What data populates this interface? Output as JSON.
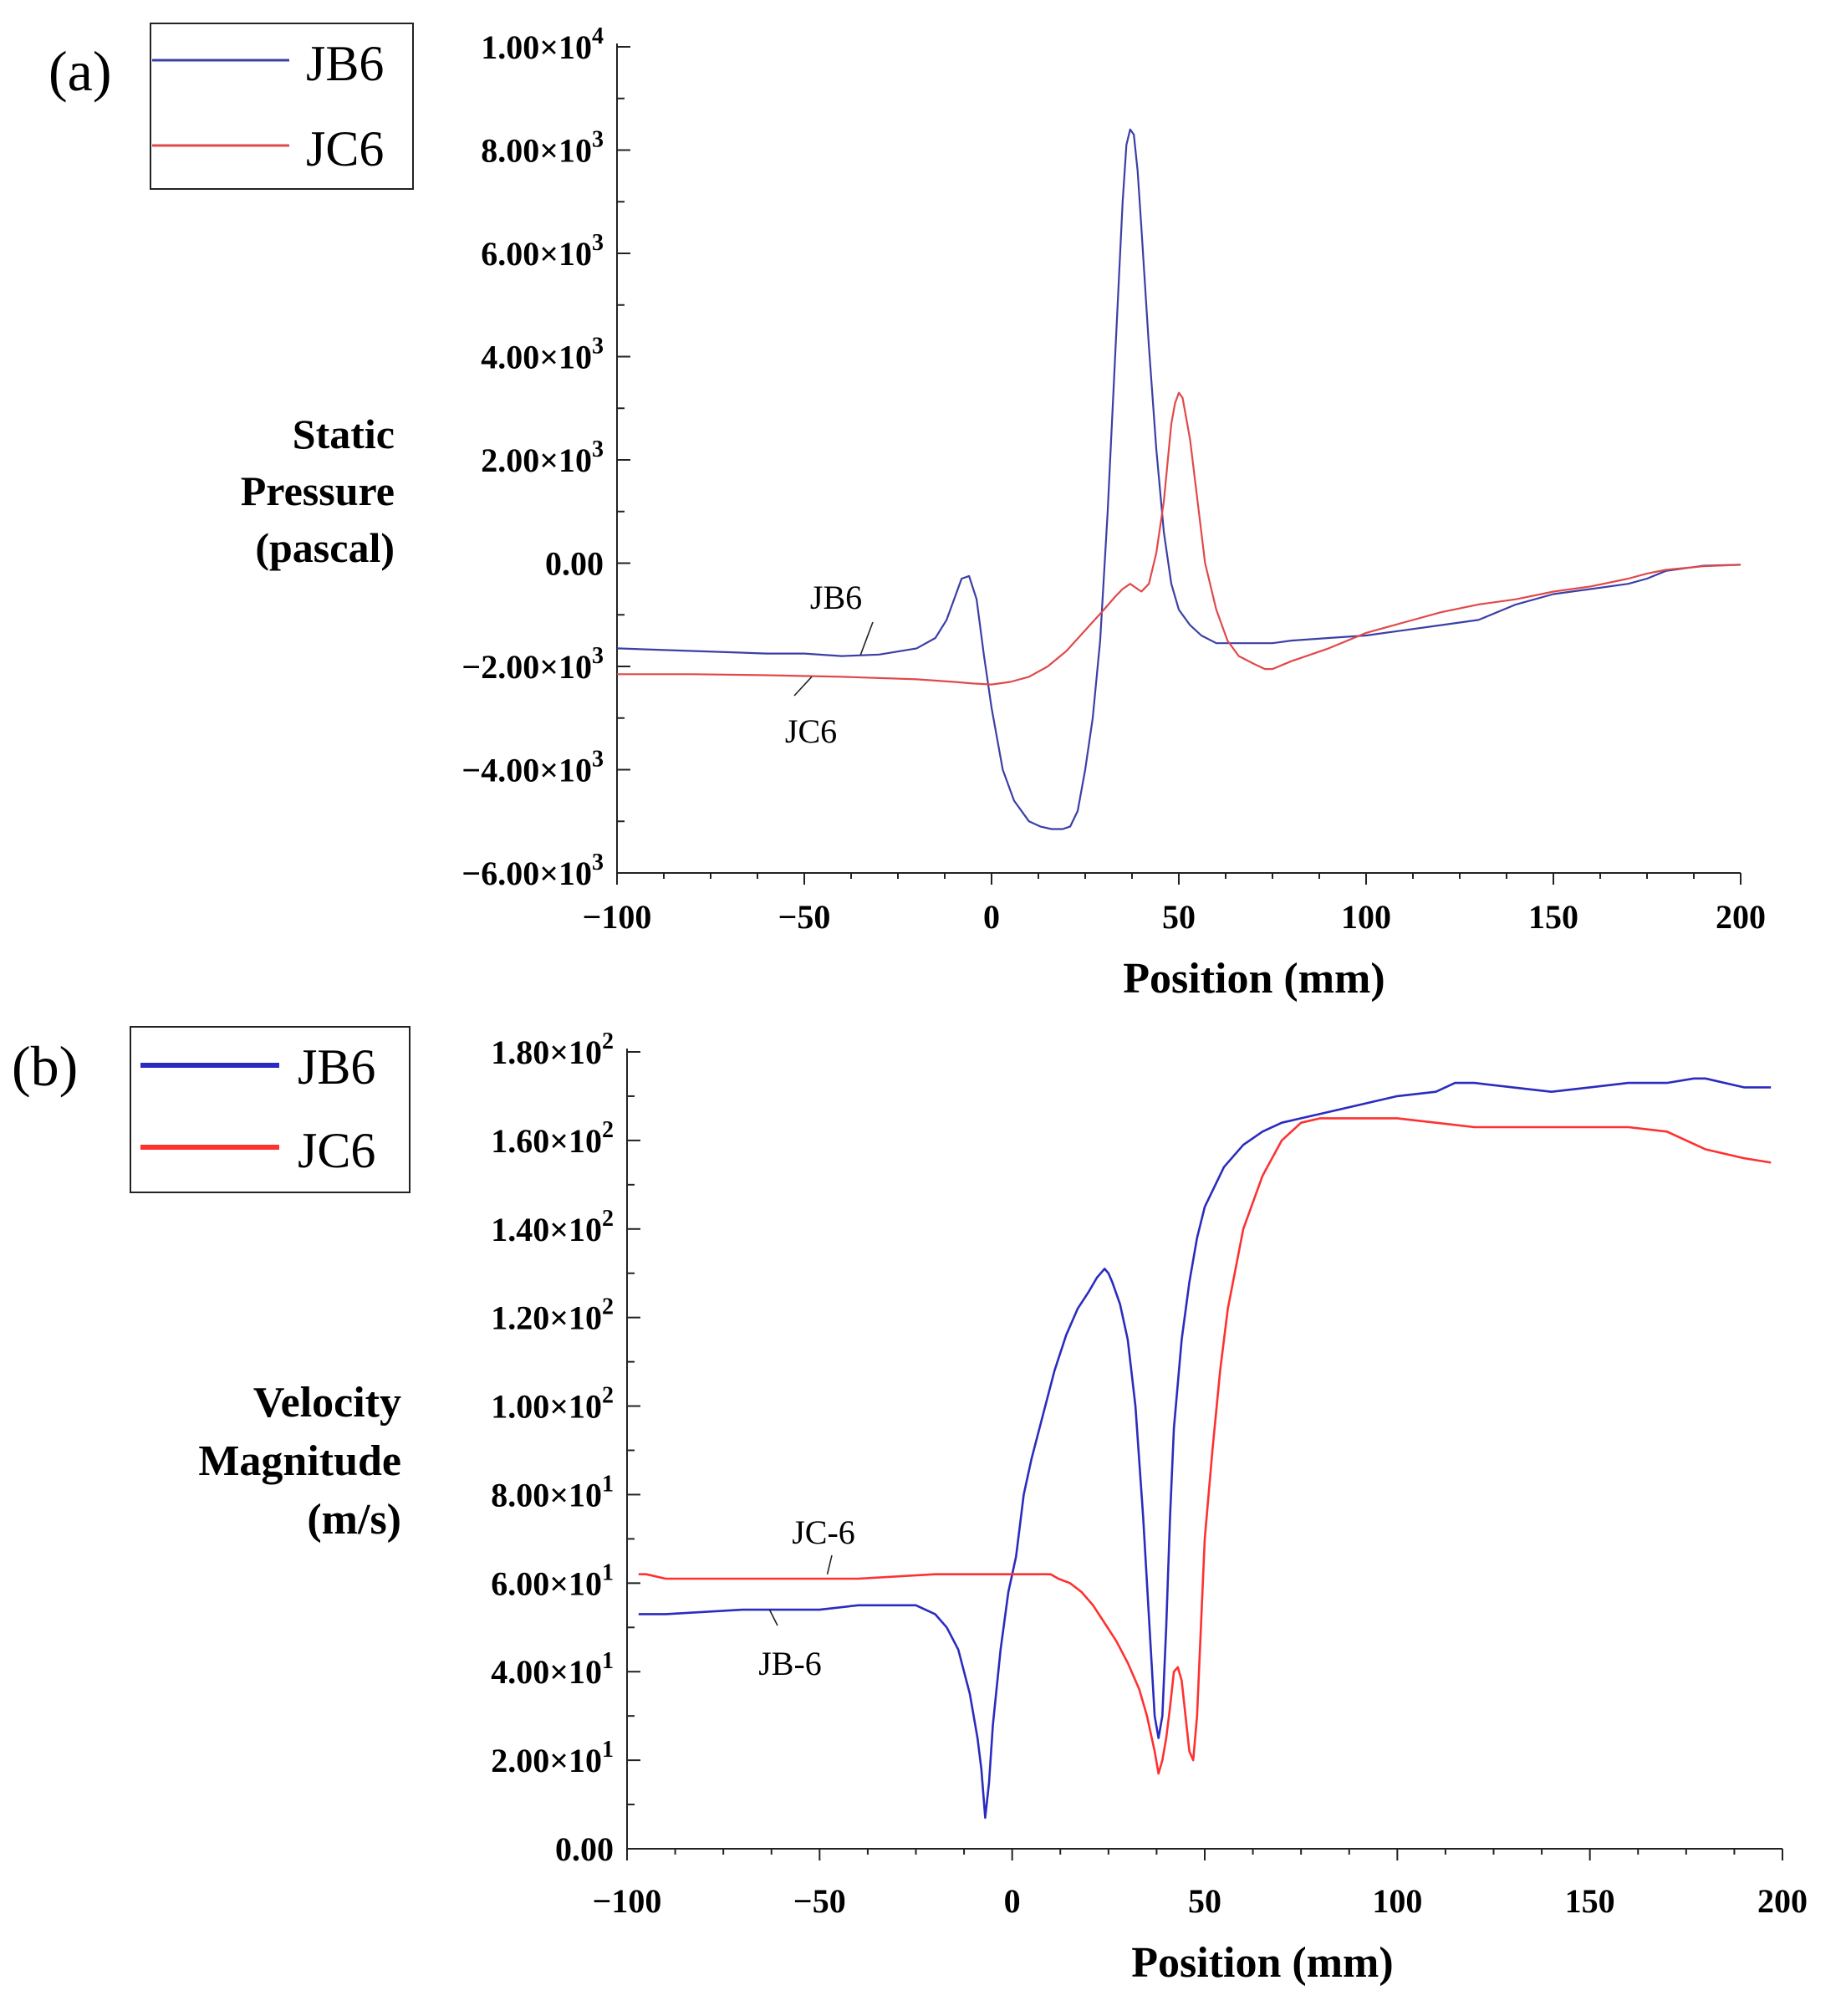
{
  "chart_data": [
    {
      "panel_label": "(a)",
      "type": "line",
      "xlabel": "Position (mm)",
      "ylabel": [
        "Static",
        "Pressure",
        "(pascal)"
      ],
      "xlim": [
        -100,
        200
      ],
      "ylim": [
        -6000,
        10000
      ],
      "x_ticks": [
        -100,
        -50,
        0,
        50,
        100,
        150,
        200
      ],
      "x_tick_labels": [
        "−100",
        "−50",
        "0",
        "50",
        "100",
        "150",
        "200"
      ],
      "y_ticks": [
        10000,
        8000,
        6000,
        4000,
        2000,
        0,
        -2000,
        -4000,
        -6000
      ],
      "y_tick_labels": [
        {
          "mantissa": "1.00×10",
          "exp": "4"
        },
        {
          "mantissa": "8.00×10",
          "exp": "3"
        },
        {
          "mantissa": "6.00×10",
          "exp": "3"
        },
        {
          "mantissa": "4.00×10",
          "exp": "3"
        },
        {
          "mantissa": "2.00×10",
          "exp": "3"
        },
        {
          "mantissa": "0.00",
          "exp": ""
        },
        {
          "mantissa": "−2.00×10",
          "exp": "3"
        },
        {
          "mantissa": "−4.00×10",
          "exp": "3"
        },
        {
          "mantissa": "−6.00×10",
          "exp": "3"
        }
      ],
      "legend_position": "top-left",
      "series": [
        {
          "name": "JB6",
          "color": "#3b3fa6",
          "x": [
            -100,
            -80,
            -60,
            -50,
            -40,
            -30,
            -20,
            -15,
            -12,
            -10,
            -8,
            -6,
            -4,
            -2,
            0,
            3,
            6,
            10,
            13,
            16,
            19,
            21,
            23,
            25,
            27,
            29,
            31,
            33,
            34,
            35,
            36,
            37,
            38,
            39,
            40,
            42,
            44,
            46,
            48,
            50,
            53,
            56,
            60,
            65,
            70,
            75,
            80,
            90,
            100,
            110,
            120,
            130,
            140,
            150,
            160,
            170,
            175,
            180,
            190,
            200
          ],
          "y": [
            -1650,
            -1700,
            -1750,
            -1750,
            -1800,
            -1770,
            -1650,
            -1450,
            -1100,
            -700,
            -300,
            -250,
            -700,
            -1800,
            -2800,
            -4000,
            -4600,
            -5000,
            -5100,
            -5150,
            -5150,
            -5100,
            -4800,
            -4000,
            -3000,
            -1500,
            1000,
            4000,
            5500,
            7000,
            8100,
            8400,
            8300,
            7600,
            6500,
            4200,
            2200,
            600,
            -400,
            -900,
            -1200,
            -1400,
            -1550,
            -1550,
            -1550,
            -1550,
            -1500,
            -1450,
            -1400,
            -1300,
            -1200,
            -1100,
            -800,
            -600,
            -500,
            -400,
            -300,
            -150,
            -50,
            -30
          ]
        },
        {
          "name": "JC6",
          "color": "#e0494a",
          "x": [
            -100,
            -80,
            -60,
            -40,
            -20,
            -10,
            -5,
            0,
            5,
            10,
            15,
            20,
            25,
            30,
            33,
            35,
            36,
            37,
            38,
            40,
            42,
            44,
            46,
            48,
            49,
            50,
            51,
            53,
            55,
            57,
            60,
            63,
            66,
            70,
            73,
            75,
            80,
            90,
            100,
            110,
            120,
            130,
            140,
            150,
            160,
            170,
            175,
            180,
            190,
            200
          ],
          "y": [
            -2150,
            -2150,
            -2170,
            -2200,
            -2250,
            -2300,
            -2330,
            -2350,
            -2300,
            -2200,
            -2000,
            -1700,
            -1300,
            -900,
            -650,
            -500,
            -450,
            -400,
            -450,
            -550,
            -400,
            200,
            1200,
            2700,
            3100,
            3300,
            3200,
            2400,
            1200,
            0,
            -900,
            -1500,
            -1800,
            -1950,
            -2050,
            -2050,
            -1900,
            -1650,
            -1350,
            -1150,
            -950,
            -800,
            -700,
            -550,
            -450,
            -300,
            -200,
            -130,
            -60,
            -30
          ]
        }
      ],
      "annotations": [
        {
          "text": "JB6",
          "x": -35,
          "y": -1780
        },
        {
          "text": "JC6",
          "x": -48,
          "y": -2200
        }
      ]
    },
    {
      "panel_label": "(b)",
      "type": "line",
      "xlabel": "Position (mm)",
      "ylabel": [
        "Velocity",
        "Magnitude",
        "(m/s)"
      ],
      "xlim": [
        -100,
        200
      ],
      "ylim": [
        0,
        180
      ],
      "x_ticks": [
        -100,
        -50,
        0,
        50,
        100,
        150,
        200
      ],
      "x_tick_labels": [
        "−100",
        "−50",
        "0",
        "50",
        "100",
        "150",
        "200"
      ],
      "y_ticks": [
        180,
        160,
        140,
        120,
        100,
        80,
        60,
        40,
        20,
        0
      ],
      "y_tick_labels": [
        {
          "mantissa": "1.80×10",
          "exp": "2"
        },
        {
          "mantissa": "1.60×10",
          "exp": "2"
        },
        {
          "mantissa": "1.40×10",
          "exp": "2"
        },
        {
          "mantissa": "1.20×10",
          "exp": "2"
        },
        {
          "mantissa": "1.00×10",
          "exp": "2"
        },
        {
          "mantissa": "8.00×10",
          "exp": "1"
        },
        {
          "mantissa": "6.00×10",
          "exp": "1"
        },
        {
          "mantissa": "4.00×10",
          "exp": "1"
        },
        {
          "mantissa": "2.00×10",
          "exp": "1"
        },
        {
          "mantissa": "0.00",
          "exp": ""
        }
      ],
      "legend_position": "top-left",
      "series": [
        {
          "name": "JB6",
          "color": "#2b2bbf",
          "x": [
            -97,
            -90,
            -70,
            -50,
            -40,
            -30,
            -25,
            -20,
            -17,
            -14,
            -11,
            -9,
            -8,
            -7,
            -6,
            -5,
            -3,
            -1,
            1,
            3,
            5,
            8,
            11,
            14,
            17,
            20,
            22,
            23,
            24,
            25,
            26,
            28,
            30,
            32,
            34,
            36,
            37,
            38,
            39,
            40,
            41,
            42,
            44,
            46,
            48,
            50,
            55,
            60,
            65,
            70,
            75,
            80,
            90,
            100,
            110,
            115,
            120,
            130,
            140,
            150,
            160,
            170,
            177,
            180,
            190,
            197
          ],
          "y": [
            53,
            53,
            54,
            54,
            55,
            55,
            55,
            53,
            50,
            45,
            35,
            25,
            18,
            7,
            15,
            28,
            45,
            58,
            66,
            80,
            88,
            98,
            108,
            116,
            122,
            126,
            129,
            130,
            131,
            130,
            128,
            123,
            115,
            100,
            75,
            45,
            30,
            25,
            30,
            50,
            75,
            95,
            115,
            128,
            138,
            145,
            154,
            159,
            162,
            164,
            165,
            166,
            168,
            170,
            171,
            173,
            173,
            172,
            171,
            172,
            173,
            173,
            174,
            174,
            172,
            172
          ]
        },
        {
          "name": "JC6",
          "color": "#ff3030",
          "x": [
            -97,
            -95,
            -90,
            -80,
            -60,
            -40,
            -20,
            0,
            5,
            10,
            12,
            15,
            18,
            21,
            24,
            27,
            30,
            33,
            35,
            37,
            38,
            39,
            40,
            41,
            42,
            43,
            44,
            45,
            46,
            47,
            48,
            49,
            50,
            52,
            54,
            56,
            60,
            65,
            70,
            75,
            80,
            85,
            90,
            100,
            110,
            120,
            130,
            140,
            150,
            160,
            170,
            180,
            190,
            197
          ],
          "y": [
            62,
            62,
            61,
            61,
            61,
            61,
            62,
            62,
            62,
            62,
            61,
            60,
            58,
            55,
            51,
            47,
            42,
            36,
            30,
            22,
            17,
            20,
            25,
            32,
            40,
            41,
            38,
            30,
            22,
            20,
            30,
            50,
            70,
            90,
            108,
            122,
            140,
            152,
            160,
            164,
            165,
            165,
            165,
            165,
            164,
            163,
            163,
            163,
            163,
            163,
            162,
            158,
            156,
            155
          ]
        }
      ],
      "annotations": [
        {
          "text": "JC-6",
          "x": -48,
          "y": 62
        },
        {
          "text": "JB-6",
          "x": -63,
          "y": 54
        }
      ]
    }
  ]
}
